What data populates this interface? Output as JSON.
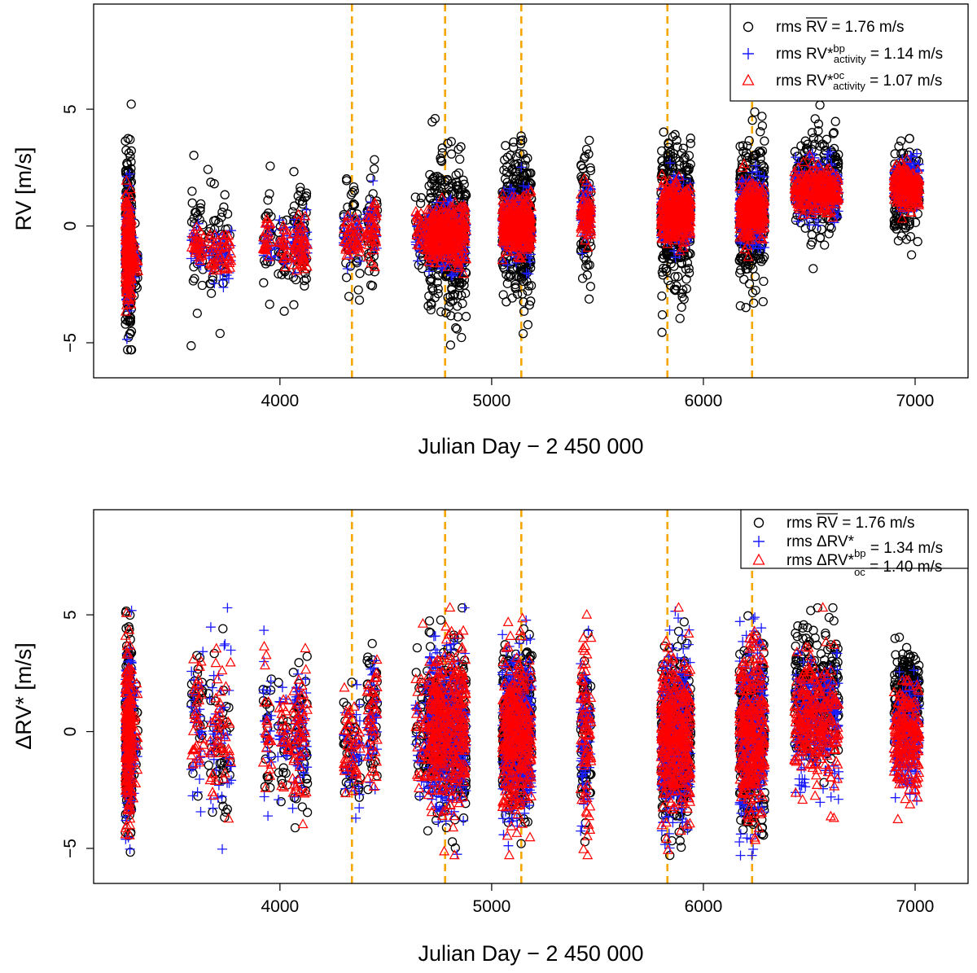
{
  "chart_data": [
    {
      "type": "scatter",
      "panel": "top",
      "xlabel": "Julian Day − 2 450 000",
      "ylabel": "RV [m/s]",
      "xlim": [
        3120,
        7250
      ],
      "ylim": [
        -6.5,
        9.5
      ],
      "xticks": [
        4000,
        5000,
        6000,
        7000
      ],
      "yticks": [
        -5,
        0,
        5
      ],
      "vertical_lines": [
        4340,
        4780,
        5140,
        5830,
        6230
      ],
      "legend": {
        "position": "top-right",
        "entries": [
          {
            "marker": "circle",
            "color": "#000000",
            "prefix": "rms ",
            "sym": "RV",
            "sup": "",
            "sub": "",
            "suffix": " = 1.76  m/s"
          },
          {
            "marker": "plus",
            "color": "#1a1aff",
            "prefix": "rms ",
            "sym": "RV*",
            "sup": "bp",
            "sub": "activity",
            "suffix": " = 1.14  m/s"
          },
          {
            "marker": "triangle",
            "color": "#ff0000",
            "prefix": "rms ",
            "sym": "RV*",
            "sup": "oc",
            "sub": "activity",
            "suffix": " = 1.07 m/s"
          }
        ]
      },
      "seasons": [
        {
          "x": [
            3270,
            3300
          ],
          "n": 400,
          "black": [
            -0.8,
            2.2
          ],
          "blue": [
            -1.0,
            1.2
          ],
          "red": [
            -1.0,
            1.1
          ]
        },
        {
          "x": [
            3300,
            3330
          ],
          "n": 40,
          "black": [
            -1.5,
            0.9
          ],
          "blue": [
            -1.5,
            0.5
          ],
          "red": [
            -1.5,
            0.4
          ]
        },
        {
          "x": [
            3580,
            3640
          ],
          "n": 60,
          "black": [
            -0.5,
            1.4
          ],
          "blue": [
            -0.9,
            0.4
          ],
          "red": [
            -0.9,
            0.4
          ]
        },
        {
          "x": [
            3660,
            3770
          ],
          "n": 90,
          "black": [
            -1.2,
            1.4
          ],
          "blue": [
            -1.2,
            0.5
          ],
          "red": [
            -1.2,
            0.5
          ]
        },
        {
          "x": [
            3920,
            3960
          ],
          "n": 40,
          "black": [
            -0.6,
            1.2
          ],
          "blue": [
            -0.6,
            0.5
          ],
          "red": [
            -0.6,
            0.5
          ]
        },
        {
          "x": [
            3990,
            4040
          ],
          "n": 40,
          "black": [
            -0.9,
            1.0
          ],
          "blue": [
            -0.9,
            0.5
          ],
          "red": [
            -0.9,
            0.5
          ]
        },
        {
          "x": [
            4060,
            4130
          ],
          "n": 100,
          "black": [
            -0.8,
            1.5
          ],
          "blue": [
            -0.8,
            0.6
          ],
          "red": [
            -0.8,
            0.6
          ]
        },
        {
          "x": [
            4300,
            4380
          ],
          "n": 80,
          "black": [
            -0.5,
            1.1
          ],
          "blue": [
            -0.5,
            0.5
          ],
          "red": [
            -0.5,
            0.5
          ]
        },
        {
          "x": [
            4410,
            4460
          ],
          "n": 80,
          "black": [
            -0.1,
            1.4
          ],
          "blue": [
            -0.1,
            0.6
          ],
          "red": [
            -0.1,
            0.6
          ]
        },
        {
          "x": [
            4640,
            4700
          ],
          "n": 60,
          "black": [
            -0.3,
            1.3
          ],
          "blue": [
            -0.3,
            0.5
          ],
          "red": [
            -0.3,
            0.5
          ]
        },
        {
          "x": [
            4700,
            4880
          ],
          "n": 700,
          "black": [
            -0.5,
            1.7
          ],
          "blue": [
            -0.5,
            0.7
          ],
          "red": [
            -0.4,
            0.6
          ]
        },
        {
          "x": [
            5050,
            5190
          ],
          "n": 700,
          "black": [
            0.0,
            1.7
          ],
          "blue": [
            0.0,
            0.7
          ],
          "red": [
            0.0,
            0.6
          ]
        },
        {
          "x": [
            5420,
            5470
          ],
          "n": 150,
          "black": [
            0.6,
            1.5
          ],
          "blue": [
            0.6,
            0.6
          ],
          "red": [
            0.6,
            0.6
          ]
        },
        {
          "x": [
            5800,
            5940
          ],
          "n": 700,
          "black": [
            0.5,
            1.6
          ],
          "blue": [
            0.5,
            0.7
          ],
          "red": [
            0.5,
            0.6
          ]
        },
        {
          "x": [
            6170,
            6290
          ],
          "n": 600,
          "black": [
            0.5,
            1.7
          ],
          "blue": [
            0.6,
            0.7
          ],
          "red": [
            0.6,
            0.6
          ]
        },
        {
          "x": [
            6430,
            6640
          ],
          "n": 500,
          "black": [
            1.6,
            1.2
          ],
          "blue": [
            1.6,
            0.6
          ],
          "red": [
            1.5,
            0.5
          ]
        },
        {
          "x": [
            6900,
            7020
          ],
          "n": 400,
          "black": [
            1.6,
            0.9
          ],
          "blue": [
            1.8,
            0.5
          ],
          "red": [
            1.7,
            0.5
          ]
        }
      ]
    },
    {
      "type": "scatter",
      "panel": "bottom",
      "xlabel": "Julian Day − 2 450 000",
      "ylabel": "ΔRV* [m/s]",
      "xlim": [
        3120,
        7250
      ],
      "ylim": [
        -6.5,
        9.5
      ],
      "xticks": [
        4000,
        5000,
        6000,
        7000
      ],
      "yticks": [
        -5,
        0,
        5
      ],
      "vertical_lines": [
        4340,
        4780,
        5140,
        5830,
        6230
      ],
      "legend": {
        "position": "top-right",
        "entries": [
          {
            "marker": "circle",
            "color": "#000000",
            "prefix": "rms ",
            "sym": "RV",
            "sup": "",
            "sub": "",
            "suffix": " = 1.76 m/s"
          },
          {
            "marker": "plus",
            "color": "#1a1aff",
            "prefix": "rms ",
            "sym": "ΔRV*",
            "sup": "",
            "sub": "bp",
            "suffix": " = 1.34  m/s"
          },
          {
            "marker": "triangle",
            "color": "#ff0000",
            "prefix": "rms ",
            "sym": "ΔRV*",
            "sup": "",
            "sub": "oc",
            "suffix": " = 1.40 m/s"
          }
        ]
      },
      "seasons": [
        {
          "x": [
            3270,
            3300
          ],
          "n": 400,
          "black": [
            0.0,
            2.0
          ],
          "blue": [
            0.0,
            2.0
          ],
          "red": [
            0.0,
            2.0
          ]
        },
        {
          "x": [
            3300,
            3330
          ],
          "n": 40,
          "black": [
            -0.2,
            1.3
          ],
          "blue": [
            -0.2,
            1.3
          ],
          "red": [
            -0.2,
            1.3
          ]
        },
        {
          "x": [
            3580,
            3640
          ],
          "n": 60,
          "black": [
            0.3,
            1.6
          ],
          "blue": [
            0.3,
            1.6
          ],
          "red": [
            0.3,
            1.6
          ]
        },
        {
          "x": [
            3660,
            3770
          ],
          "n": 90,
          "black": [
            -0.5,
            1.8
          ],
          "blue": [
            -0.5,
            1.8
          ],
          "red": [
            -0.5,
            1.8
          ]
        },
        {
          "x": [
            3920,
            3960
          ],
          "n": 40,
          "black": [
            0.2,
            1.5
          ],
          "blue": [
            0.2,
            1.5
          ],
          "red": [
            0.2,
            1.5
          ]
        },
        {
          "x": [
            3990,
            4040
          ],
          "n": 40,
          "black": [
            -0.3,
            1.3
          ],
          "blue": [
            -0.3,
            1.3
          ],
          "red": [
            -0.3,
            1.3
          ]
        },
        {
          "x": [
            4060,
            4130
          ],
          "n": 100,
          "black": [
            -0.3,
            1.6
          ],
          "blue": [
            -0.3,
            1.6
          ],
          "red": [
            -0.3,
            1.6
          ]
        },
        {
          "x": [
            4300,
            4380
          ],
          "n": 80,
          "black": [
            -0.6,
            1.1
          ],
          "blue": [
            -0.6,
            1.1
          ],
          "red": [
            -0.6,
            1.1
          ]
        },
        {
          "x": [
            4410,
            4460
          ],
          "n": 80,
          "black": [
            0.4,
            1.4
          ],
          "blue": [
            0.4,
            1.4
          ],
          "red": [
            0.4,
            1.4
          ]
        },
        {
          "x": [
            4640,
            4700
          ],
          "n": 60,
          "black": [
            0.0,
            1.6
          ],
          "blue": [
            0.0,
            1.6
          ],
          "red": [
            0.0,
            1.6
          ]
        },
        {
          "x": [
            4700,
            4880
          ],
          "n": 700,
          "black": [
            0.0,
            1.8
          ],
          "blue": [
            0.0,
            1.8
          ],
          "red": [
            0.0,
            1.8
          ]
        },
        {
          "x": [
            5050,
            5190
          ],
          "n": 700,
          "black": [
            0.0,
            1.8
          ],
          "blue": [
            0.0,
            1.8
          ],
          "red": [
            0.0,
            1.8
          ]
        },
        {
          "x": [
            5420,
            5470
          ],
          "n": 150,
          "black": [
            0.0,
            2.0
          ],
          "blue": [
            0.0,
            2.0
          ],
          "red": [
            0.0,
            2.0
          ]
        },
        {
          "x": [
            5800,
            5940
          ],
          "n": 700,
          "black": [
            -0.3,
            1.8
          ],
          "blue": [
            -0.3,
            1.8
          ],
          "red": [
            -0.3,
            1.8
          ]
        },
        {
          "x": [
            6170,
            6290
          ],
          "n": 600,
          "black": [
            -0.2,
            1.9
          ],
          "blue": [
            -0.2,
            1.9
          ],
          "red": [
            -0.2,
            1.9
          ]
        },
        {
          "x": [
            6430,
            6640
          ],
          "n": 500,
          "black": [
            1.6,
            1.5
          ],
          "blue": [
            0.4,
            1.4
          ],
          "red": [
            0.4,
            1.4
          ]
        },
        {
          "x": [
            6900,
            7020
          ],
          "n": 400,
          "black": [
            1.6,
            1.0
          ],
          "blue": [
            -0.2,
            1.2
          ],
          "red": [
            -0.2,
            1.2
          ]
        }
      ]
    }
  ]
}
